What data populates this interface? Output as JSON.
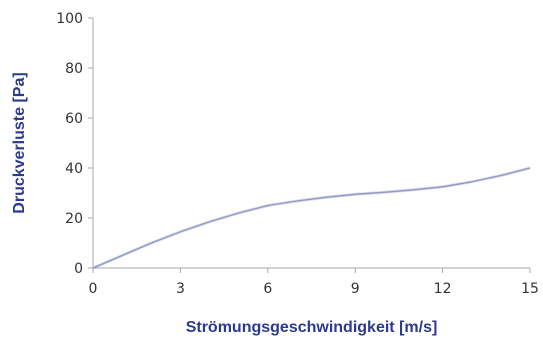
{
  "chart_data": {
    "type": "line",
    "title": "",
    "xlabel": "Strömungsgeschwindigkeit [m/s]",
    "ylabel": "Druckverluste [Pa]",
    "xlim": [
      0,
      15
    ],
    "ylim": [
      0,
      100
    ],
    "x_ticks": [
      "0",
      "3",
      "6",
      "9",
      "12",
      "15"
    ],
    "y_ticks": [
      "0",
      "20",
      "40",
      "60",
      "80",
      "100"
    ],
    "grid": false,
    "legend": "none",
    "series": [
      {
        "color": "#8f98c6",
        "x": [
          0,
          1,
          2,
          3,
          4,
          5,
          6,
          7,
          8,
          9,
          10,
          11,
          12,
          13,
          14,
          15
        ],
        "y": [
          0,
          5,
          10,
          14.5,
          18.5,
          22,
          25,
          26.8,
          28.3,
          29.5,
          30.3,
          31.3,
          32.5,
          34.5,
          37,
          40
        ]
      }
    ],
    "colors": {
      "axis_title": "#2b3a8f",
      "axis_line": "#aaaaaa",
      "tick_text": "#333333"
    }
  }
}
